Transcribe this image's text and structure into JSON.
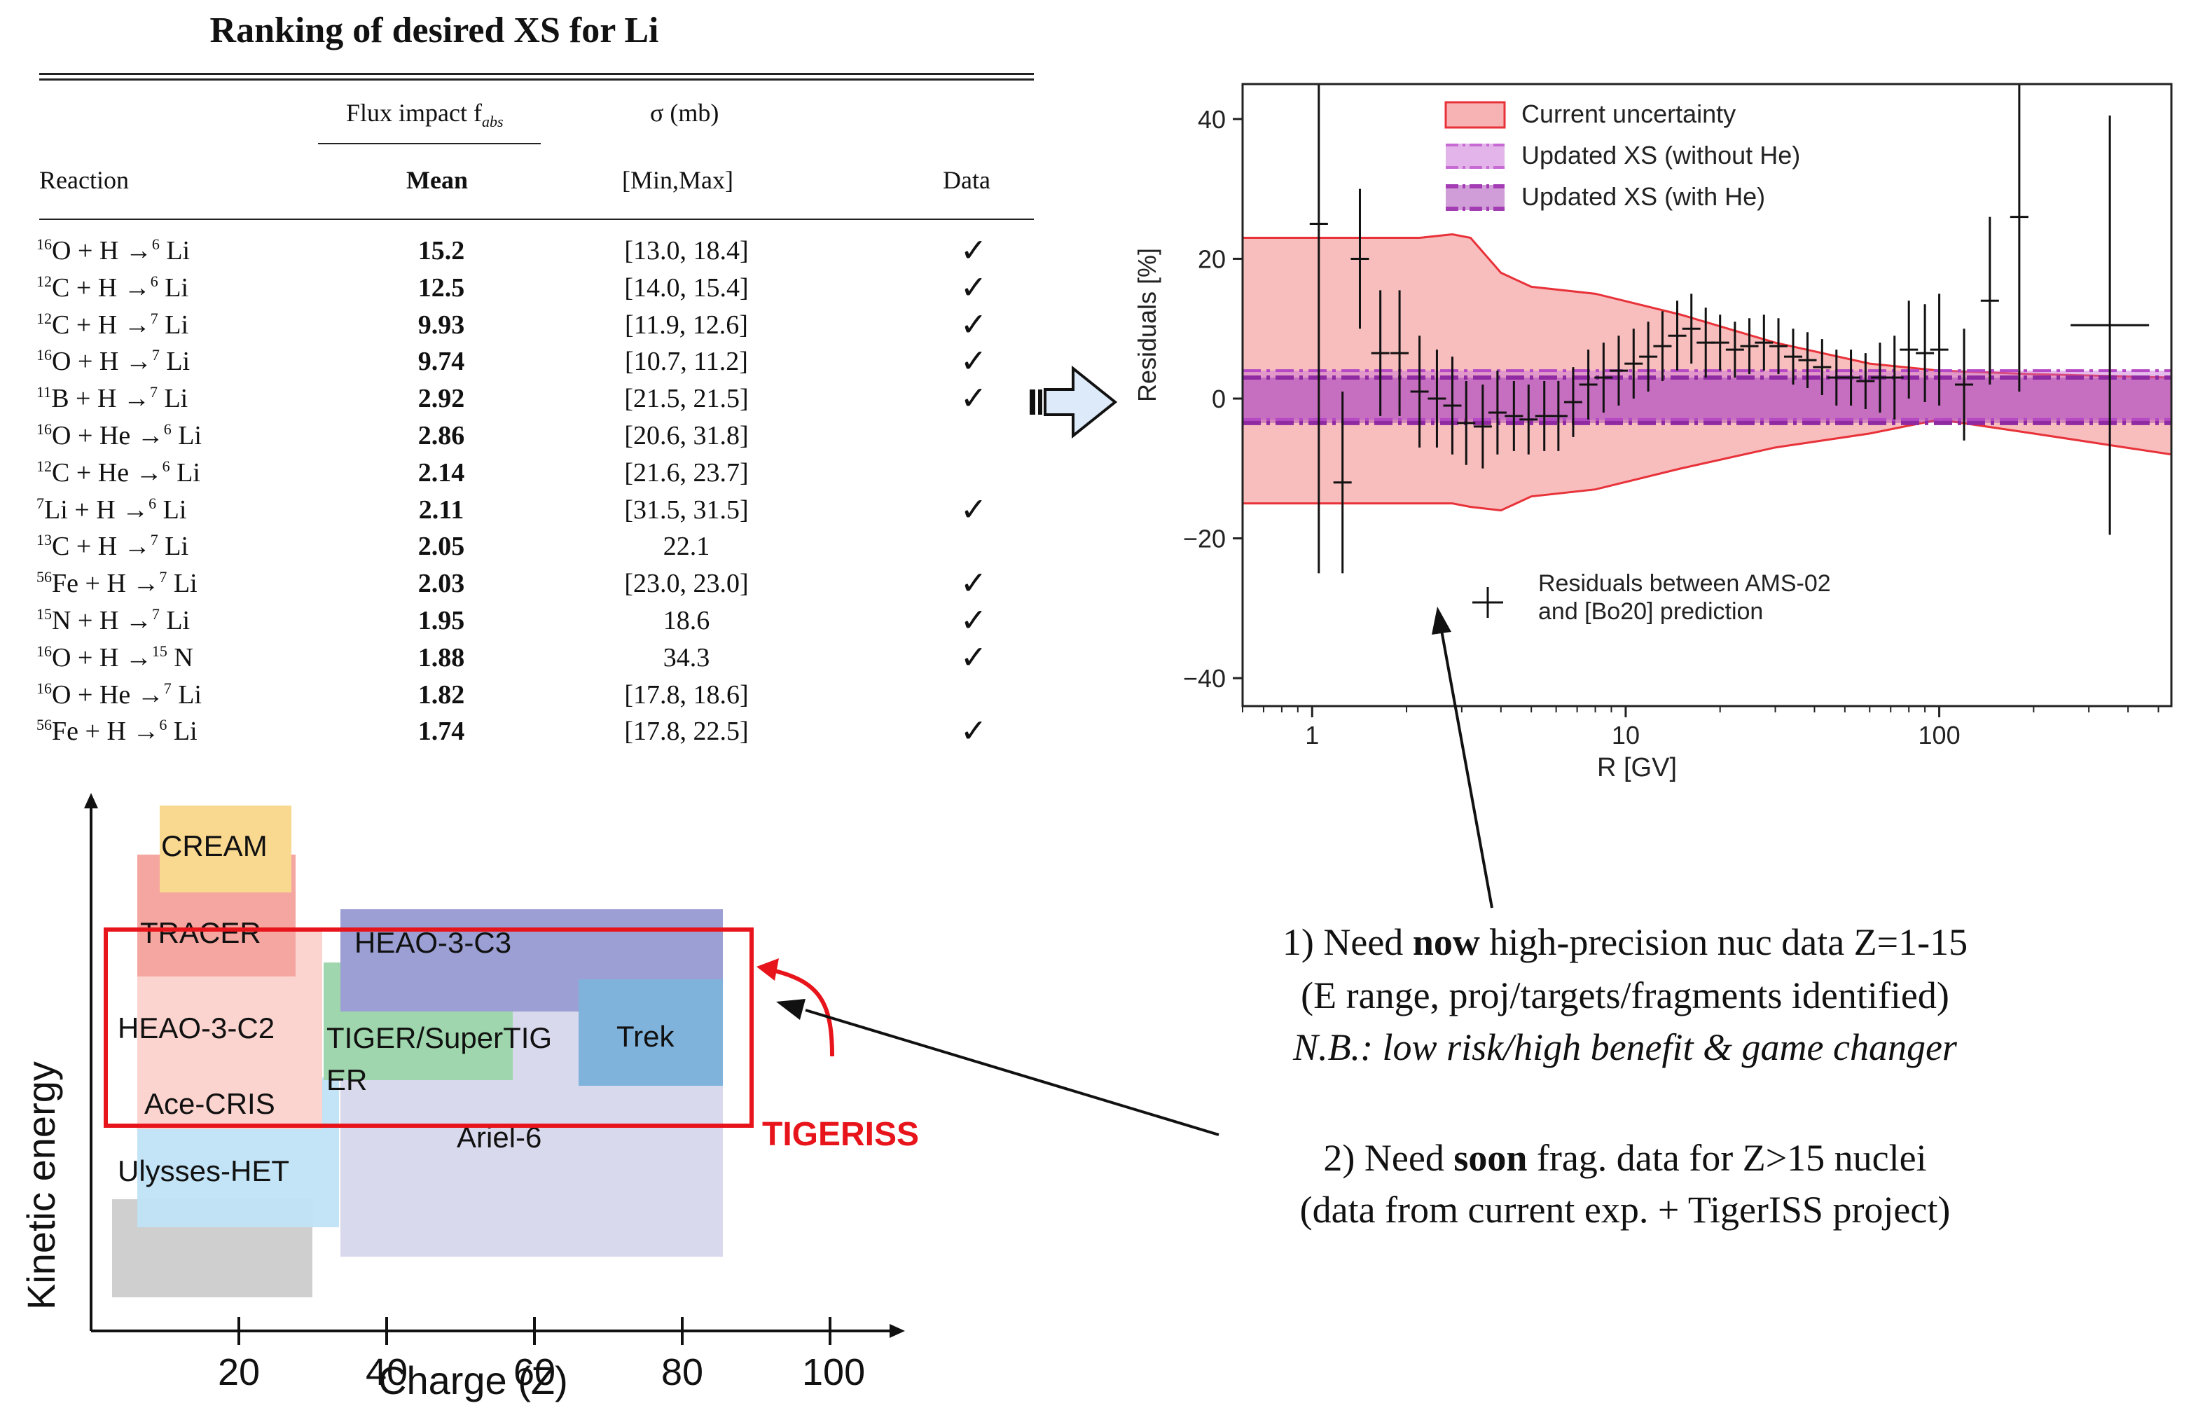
{
  "table": {
    "title": "Ranking of desired XS for Li",
    "header": {
      "flux_impact": "Flux impact f",
      "flux_sub": "abs",
      "sigma": "σ (mb)",
      "reaction": "Reaction",
      "mean": "Mean",
      "minmax": "[Min,Max]",
      "data": "Data"
    },
    "rows": [
      {
        "p_mass": "16",
        "p": "O",
        "t": "H",
        "f_mass": "6",
        "f": "Li",
        "mean": "15.2",
        "range": "[13.0, 18.4]",
        "data": "✓"
      },
      {
        "p_mass": "12",
        "p": "C",
        "t": "H",
        "f_mass": "6",
        "f": "Li",
        "mean": "12.5",
        "range": "[14.0, 15.4]",
        "data": "✓"
      },
      {
        "p_mass": "12",
        "p": "C",
        "t": "H",
        "f_mass": "7",
        "f": "Li",
        "mean": "9.93",
        "range": "[11.9, 12.6]",
        "data": "✓"
      },
      {
        "p_mass": "16",
        "p": "O",
        "t": "H",
        "f_mass": "7",
        "f": "Li",
        "mean": "9.74",
        "range": "[10.7, 11.2]",
        "data": "✓"
      },
      {
        "p_mass": "11",
        "p": "B",
        "t": "H",
        "f_mass": "7",
        "f": "Li",
        "mean": "2.92",
        "range": "[21.5, 21.5]",
        "data": "✓"
      },
      {
        "p_mass": "16",
        "p": "O",
        "t": "He",
        "f_mass": "6",
        "f": "Li",
        "mean": "2.86",
        "range": "[20.6, 31.8]",
        "data": ""
      },
      {
        "p_mass": "12",
        "p": "C",
        "t": "He",
        "f_mass": "6",
        "f": "Li",
        "mean": "2.14",
        "range": "[21.6, 23.7]",
        "data": ""
      },
      {
        "p_mass": "7",
        "p": "Li",
        "t": "H",
        "f_mass": "6",
        "f": "Li",
        "mean": "2.11",
        "range": "[31.5, 31.5]",
        "data": "✓"
      },
      {
        "p_mass": "13",
        "p": "C",
        "t": "H",
        "f_mass": "7",
        "f": "Li",
        "mean": "2.05",
        "range": "22.1",
        "data": ""
      },
      {
        "p_mass": "56",
        "p": "Fe",
        "t": "H",
        "f_mass": "7",
        "f": "Li",
        "mean": "2.03",
        "range": "[23.0, 23.0]",
        "data": "✓"
      },
      {
        "p_mass": "15",
        "p": "N",
        "t": "H",
        "f_mass": "7",
        "f": "Li",
        "mean": "1.95",
        "range": "18.6",
        "data": "✓"
      },
      {
        "p_mass": "16",
        "p": "O",
        "t": "H",
        "f_mass": "15",
        "f": "N",
        "mean": "1.88",
        "range": "34.3",
        "data": "✓"
      },
      {
        "p_mass": "16",
        "p": "O",
        "t": "He",
        "f_mass": "7",
        "f": "Li",
        "mean": "1.82",
        "range": "[17.8, 18.6]",
        "data": ""
      },
      {
        "p_mass": "56",
        "p": "Fe",
        "t": "H",
        "f_mass": "6",
        "f": "Li",
        "mean": "1.74",
        "range": "[17.8, 22.5]",
        "data": "✓"
      }
    ]
  },
  "experiments_plot": {
    "ylabel": "Kinetic energy",
    "xlabel": "Charge (Z)",
    "xticks": [
      "20",
      "40",
      "60",
      "80",
      "100"
    ],
    "experiments": [
      {
        "name": "CREAM",
        "color": "#f9d98f"
      },
      {
        "name": "TRACER",
        "color": "#f5a6a0"
      },
      {
        "name": "HEAO-3-C3",
        "color": "#9b9fd3"
      },
      {
        "name": "HEAO-3-C2",
        "color": "#fbd4cf"
      },
      {
        "name": "TIGER/SuperTIGER",
        "color": "#9fd6ad"
      },
      {
        "name": "Trek",
        "color": "#7fb3dc"
      },
      {
        "name": "Ace-CRIS",
        "color": "#bfe3f5"
      },
      {
        "name": "Ariel-6",
        "color": "#d9d9ee"
      },
      {
        "name": "Ulysses-HET",
        "color": "#cfcfcf"
      }
    ],
    "label_tiger_a": "TIGER/SuperTIG",
    "label_tiger_b": "ER",
    "highlight": "TIGERISS",
    "highlight_color": "#e8141b"
  },
  "chart_data": {
    "type": "line",
    "title": "",
    "xlabel": "R [GV]",
    "ylabel": "Residuals [%]",
    "xscale": "log",
    "xlim": [
      0.6,
      550
    ],
    "ylim": [
      -44,
      45
    ],
    "xticks": [
      1,
      10,
      100
    ],
    "xtick_labels": [
      "1",
      "10",
      "100"
    ],
    "yticks": [
      -40,
      -20,
      0,
      20,
      40
    ],
    "ytick_labels": [
      "−40",
      "−20",
      "0",
      "20",
      "40"
    ],
    "legend": [
      {
        "label": "Current uncertainty",
        "style": "band",
        "color": "#f4a3a3"
      },
      {
        "label": "Updated XS (without He)",
        "style": "dashdot-band",
        "color": "#c86ad4"
      },
      {
        "label": "Updated XS (with He)",
        "style": "dashdot-band",
        "color": "#a43cb4"
      }
    ],
    "annotation": [
      "Residuals between AMS-02",
      " and [Bo20] prediction"
    ],
    "current_uncertainty": {
      "R": [
        0.6,
        2.2,
        2.8,
        3.2,
        4.0,
        5.0,
        8,
        15,
        30,
        60,
        100,
        200,
        550
      ],
      "upper": [
        23,
        23,
        23.5,
        23,
        18,
        16,
        15,
        12,
        8,
        5,
        4,
        3.5,
        3
      ],
      "lower": [
        -15,
        -15,
        -15,
        -15.5,
        -16,
        -14,
        -13,
        -10,
        -7,
        -5,
        -3,
        -5,
        -8
      ]
    },
    "updated_xs_without_he": {
      "upper": 4,
      "lower": -3
    },
    "updated_xs_with_he": {
      "upper": 3,
      "lower": -3.5
    },
    "residuals": {
      "R": [
        1.05,
        1.25,
        1.42,
        1.65,
        1.9,
        2.2,
        2.5,
        2.8,
        3.1,
        3.5,
        3.9,
        4.4,
        4.9,
        5.5,
        6.1,
        6.8,
        7.6,
        8.5,
        9.5,
        10.6,
        11.8,
        13.1,
        14.6,
        16.2,
        18,
        20,
        22.3,
        24.8,
        27.6,
        30.7,
        34.2,
        38,
        42.3,
        47,
        52.3,
        58.2,
        64.7,
        72,
        80,
        90,
        100,
        120,
        145,
        180,
        350
      ],
      "y": [
        25,
        -12,
        20,
        6.5,
        6.5,
        1,
        0,
        -1,
        -3.5,
        -4,
        -2,
        -2.5,
        -3,
        -2.5,
        -2.5,
        -0.5,
        2,
        3,
        4,
        5,
        6,
        7.5,
        9,
        10,
        8,
        8,
        7,
        7.5,
        8,
        7.5,
        6,
        5.5,
        4.5,
        3,
        3,
        2.5,
        3,
        3,
        7,
        6.5,
        7,
        2,
        14,
        26,
        10.5
      ],
      "err": [
        50,
        13,
        10,
        9,
        9,
        8,
        7,
        7,
        6,
        6,
        6,
        5,
        5,
        5,
        5,
        5,
        5,
        5,
        5,
        5,
        5,
        5,
        5,
        5,
        5,
        4,
        4,
        4,
        4,
        4,
        4,
        4,
        4,
        4,
        4,
        4,
        5,
        6,
        7,
        7,
        8,
        8,
        12,
        25,
        30
      ],
      "xerr_wide_last": true
    }
  },
  "notes": {
    "n1_line1_a": "1) Need ",
    "n1_line1_b": "now",
    "n1_line1_c": " high-precision nuc data Z=1-15",
    "n1_line2": "(E range, proj/targets/fragments identified)",
    "n1_line3_a": "N.B.",
    "n1_line3_b": ": low risk/high benefit & game changer",
    "n2_line1_a": "2) Need ",
    "n2_line1_b": "soon",
    "n2_line1_c": " frag. data for Z>15 nuclei",
    "n2_line2": "(data from current exp. + TigerISS project)"
  }
}
